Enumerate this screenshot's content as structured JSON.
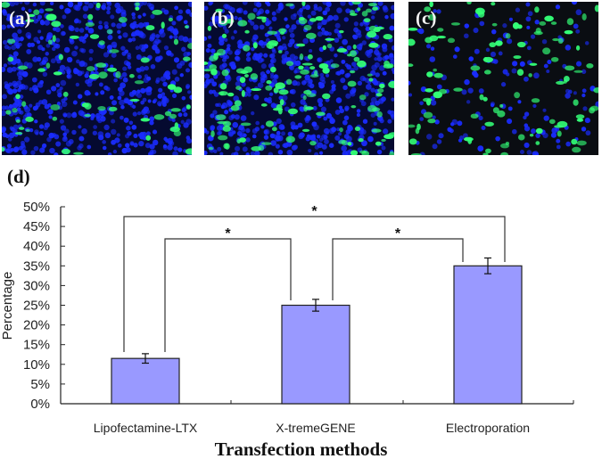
{
  "panels": [
    {
      "label": "(a)",
      "description": "fluorescence micrograph, dense blue nuclei with scattered green cells",
      "density": "high",
      "green_ratio": 0.12
    },
    {
      "label": "(b)",
      "description": "fluorescence micrograph, dense blue nuclei with more green cells",
      "density": "high",
      "green_ratio": 0.25
    },
    {
      "label": "(c)",
      "description": "fluorescence micrograph, sparse blue nuclei with many green cells",
      "density": "low",
      "green_ratio": 0.35
    }
  ],
  "chart_label": "(d)",
  "colors": {
    "bar_fill": "#9999ff",
    "bar_stroke": "#222222",
    "axis": "#222222",
    "nucleus_blue": "#1a2cff",
    "gfp_green": "#33ff77"
  },
  "chart_data": {
    "type": "bar",
    "title": "",
    "xlabel": "Transfection methods",
    "ylabel": "Percentage",
    "categories": [
      "Lipofectamine-LTX",
      "X-tremeGENE",
      "Electroporation"
    ],
    "values": [
      11.5,
      25,
      35
    ],
    "errors": [
      1.2,
      1.5,
      2
    ],
    "ylim": [
      0,
      50
    ],
    "yticks": [
      "0%",
      "5%",
      "10%",
      "15%",
      "20%",
      "25%",
      "30%",
      "35%",
      "40%",
      "45%",
      "50%"
    ],
    "grid": false,
    "legend": null,
    "significance": [
      {
        "pair": [
          "Lipofectamine-LTX",
          "X-tremeGENE"
        ],
        "label": "*"
      },
      {
        "pair": [
          "X-tremeGENE",
          "Electroporation"
        ],
        "label": "*"
      },
      {
        "pair": [
          "Lipofectamine-LTX",
          "Electroporation"
        ],
        "label": "*"
      }
    ]
  }
}
